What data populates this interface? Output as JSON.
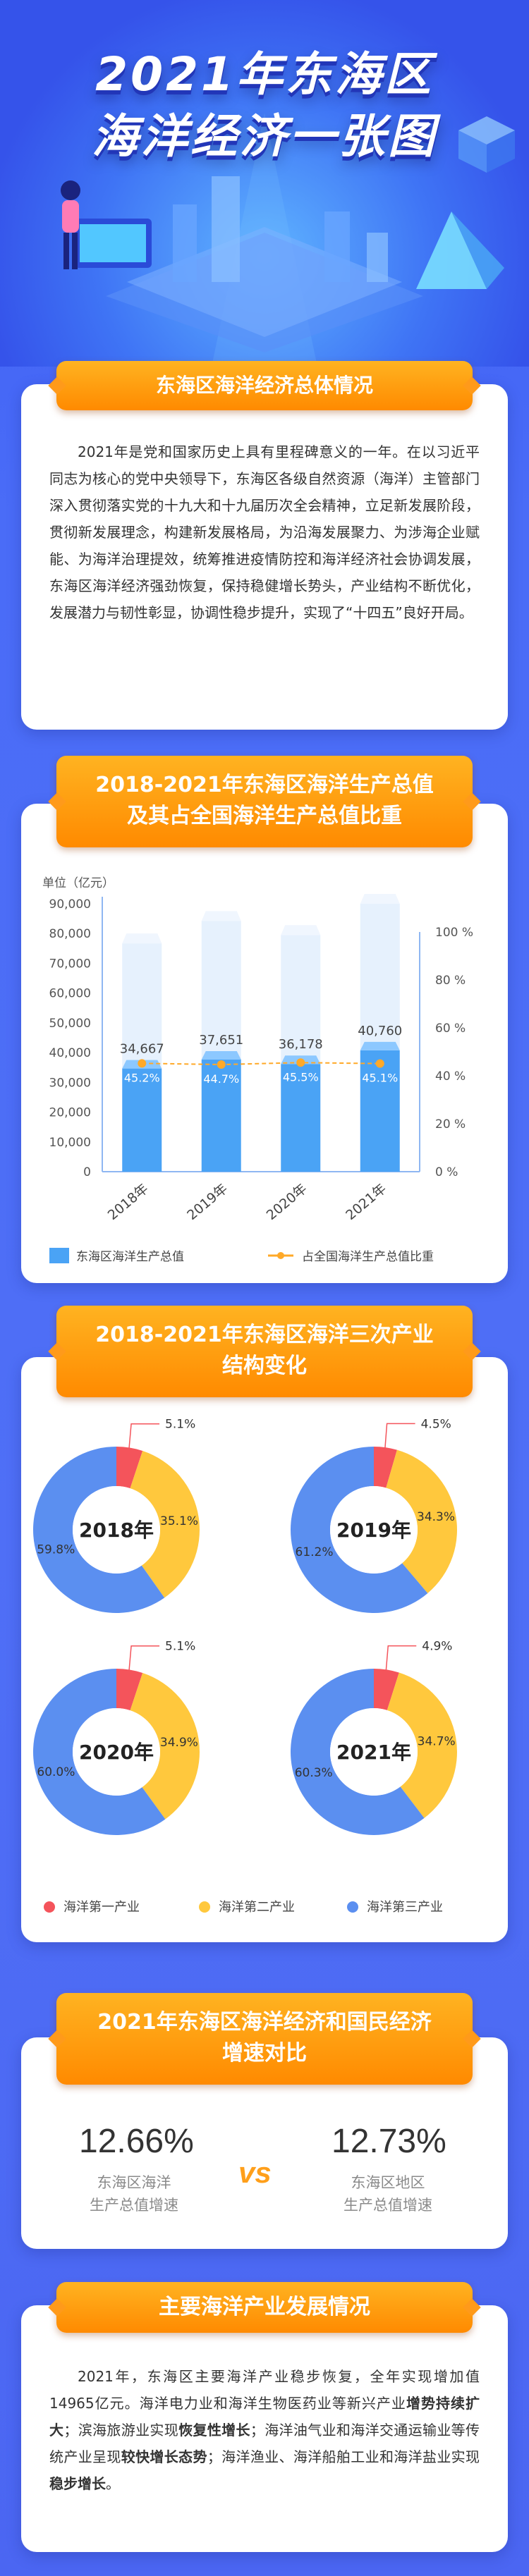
{
  "header": {
    "title_line1": "2021年东海区",
    "title_line2": "海洋经济一张图"
  },
  "section1": {
    "title": "东海区海洋经济总体情况",
    "text": "2021年是党和国家历史上具有里程碑意义的一年。在以习近平同志为核心的党中央领导下，东海区各级自然资源（海洋）主管部门深入贯彻落实党的十九大和十九届历次全会精神，立足新发展阶段，贯彻新发展理念，构建新发展格局，为沿海发展聚力、为涉海企业赋能、为海洋治理提效，统筹推进疫情防控和海洋经济社会协调发展，东海区海洋经济强劲恢复，保持稳健增长势头，产业结构不断优化，发展潜力与韧性彰显，协调性稳步提升，实现了“十四五”良好开局。"
  },
  "section2": {
    "title_line1": "2018-2021年东海区海洋生产总值",
    "title_line2": "及其占全国海洋生产总值比重"
  },
  "section3": {
    "title_line1": "2018-2021年东海区海洋三次产业",
    "title_line2": "结构变化"
  },
  "section4": {
    "title_line1": "2021年东海区海洋经济和国民经济",
    "title_line2": "增速对比",
    "left_value": "12.66%",
    "left_label_line1": "东海区海洋",
    "left_label_line2": "生产总值增速",
    "vs": "vs",
    "right_value": "12.73%",
    "right_label_line1": "东海区地区",
    "right_label_line2": "生产总值增速"
  },
  "section5": {
    "title": "主要海洋产业发展情况",
    "t1": "2021年，东海区主要海洋产业稳步恢复，全年实现增加值14965亿元。海洋电力业和海洋生物医药业等新兴产业",
    "b1": "增势持续扩大",
    "t2": "；滨海旅游业实现",
    "b2": "恢复性增长",
    "t3": "；海洋油气业和海洋交通运输业等传统产业呈现",
    "b3": "较快增长态势",
    "t4": "；海洋渔业、海洋船舶工业和海洋盐业实现",
    "b4": "稳步增长",
    "t5": "。"
  },
  "chart_data": [
    {
      "type": "bar",
      "unit_label": "单位（亿元）",
      "categories": [
        "2018年",
        "2019年",
        "2020年",
        "2021年"
      ],
      "series": [
        {
          "name": "东海区海洋生产总值",
          "values": [
            34667,
            37651,
            36178,
            40760
          ],
          "value_labels": [
            "34,667",
            "37,651",
            "36,178",
            "40,760"
          ]
        },
        {
          "name": "占全国海洋生产总值比重",
          "values": [
            45.2,
            44.7,
            45.5,
            45.1
          ],
          "value_labels": [
            "45.2%",
            "44.7%",
            "45.5%",
            "45.1%"
          ]
        }
      ],
      "y_left": {
        "range": [
          0,
          90000
        ],
        "ticks": [
          "0",
          "10,000",
          "20,000",
          "30,000",
          "40,000",
          "50,000",
          "60,000",
          "70,000",
          "80,000",
          "90,000"
        ]
      },
      "y_right": {
        "range": [
          0,
          100
        ],
        "ticks": [
          "0 %",
          "20 %",
          "40 %",
          "60 %",
          "80 %",
          "100 %"
        ]
      },
      "colors": {
        "bar": "#4aa3f5",
        "line": "#ffa928"
      }
    },
    {
      "type": "pie",
      "donuts": [
        {
          "year": "2018年",
          "labels": [
            "5.1%",
            "35.1%",
            "59.8%"
          ],
          "values": [
            5.1,
            35.1,
            59.8
          ]
        },
        {
          "year": "2019年",
          "labels": [
            "4.5%",
            "34.3%",
            "61.2%"
          ],
          "values": [
            4.5,
            34.3,
            61.2
          ]
        },
        {
          "year": "2020年",
          "labels": [
            "5.1%",
            "34.9%",
            "60.0%"
          ],
          "values": [
            5.1,
            34.9,
            60.0
          ]
        },
        {
          "year": "2021年",
          "labels": [
            "4.9%",
            "34.7%",
            "60.3%"
          ],
          "values": [
            4.9,
            34.7,
            60.3
          ]
        }
      ],
      "legend": [
        "海洋第一产业",
        "海洋第二产业",
        "海洋第三产业"
      ],
      "colors": [
        "#f4545b",
        "#ffc83d",
        "#5b8ff0"
      ]
    }
  ]
}
